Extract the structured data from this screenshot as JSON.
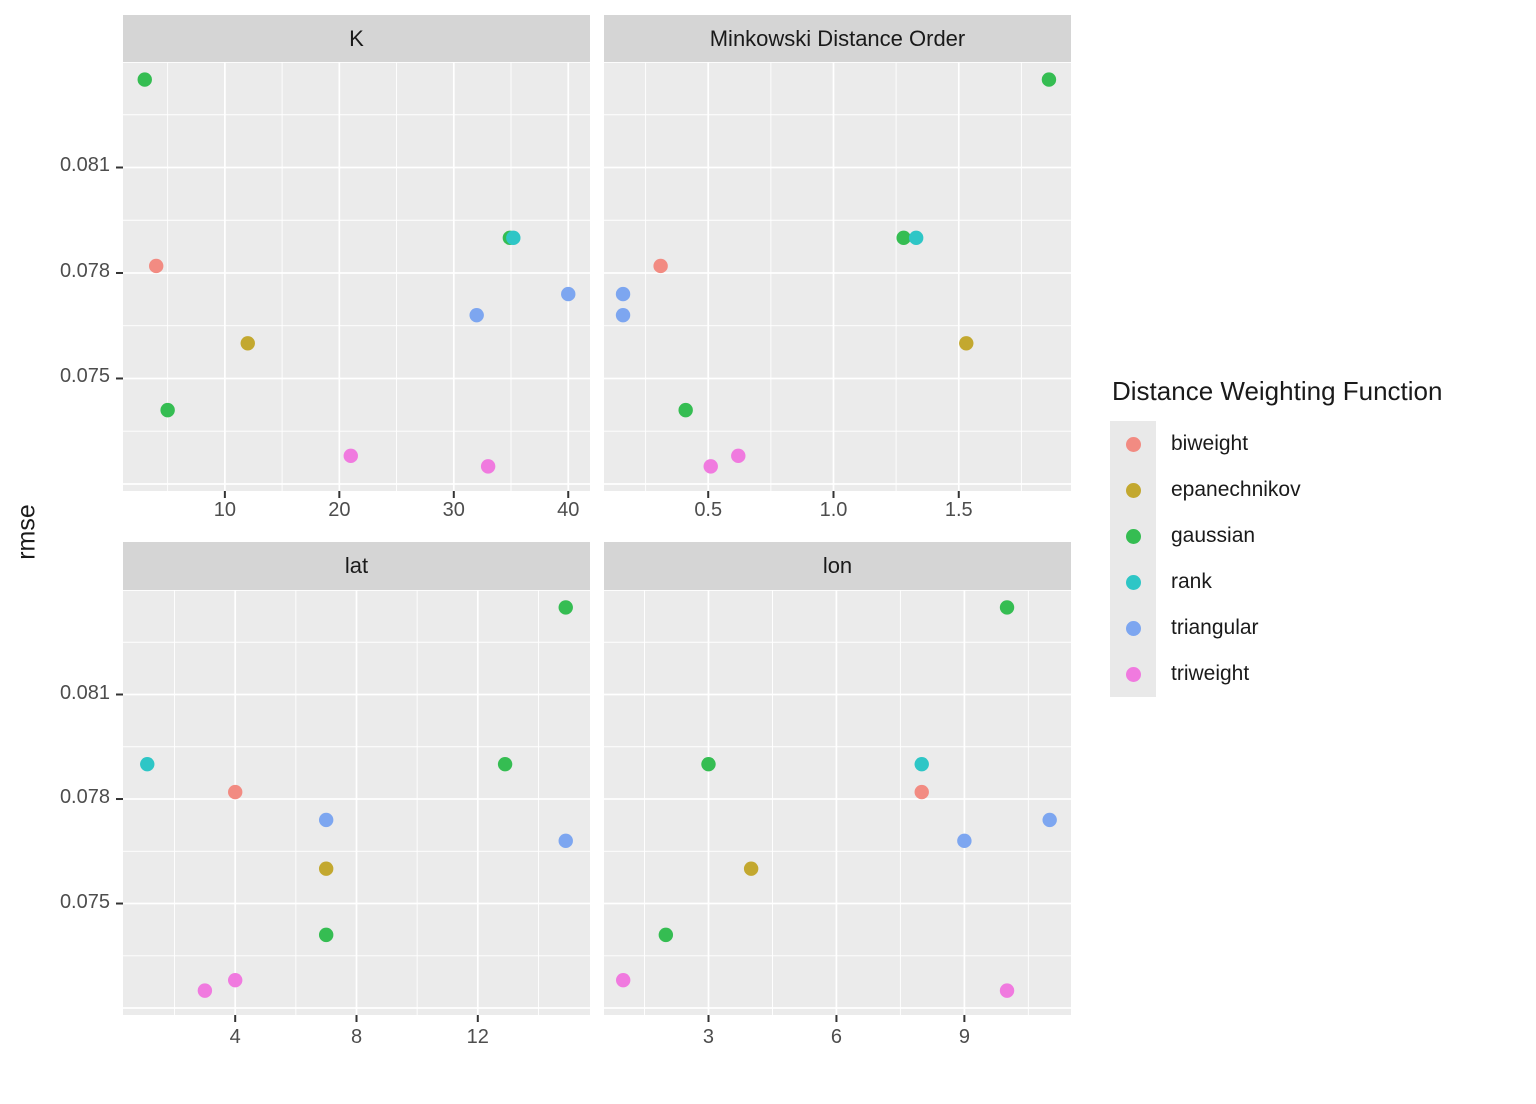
{
  "chart_data": {
    "type": "scatter",
    "ylabel": "rmse",
    "legend": {
      "title": "Distance Weighting Function",
      "position": "right"
    },
    "y_axis": {
      "domain": [
        0.0718,
        0.084
      ],
      "ticks": [
        {
          "value": 0.075,
          "label": "0.075"
        },
        {
          "value": 0.078,
          "label": "0.078"
        },
        {
          "value": 0.081,
          "label": "0.081"
        }
      ],
      "major_unlabeled": [
        0.072,
        0.084
      ],
      "minor": [
        0.0735,
        0.0765,
        0.0795,
        0.0825
      ]
    },
    "series": [
      {
        "name": "biweight",
        "color": "#F28B82"
      },
      {
        "name": "epanechnikov",
        "color": "#C3A82F"
      },
      {
        "name": "gaussian",
        "color": "#35BD52"
      },
      {
        "name": "rank",
        "color": "#2EC6C6"
      },
      {
        "name": "triangular",
        "color": "#7DA6F0"
      },
      {
        "name": "triweight",
        "color": "#F07ADF"
      }
    ],
    "facets": [
      {
        "label": "K",
        "x_domain": [
          1.1,
          41.9
        ],
        "x_ticks": [
          {
            "value": 10,
            "label": "10"
          },
          {
            "value": 20,
            "label": "20"
          },
          {
            "value": 30,
            "label": "30"
          },
          {
            "value": 40,
            "label": "40"
          }
        ],
        "x_minor": [
          5,
          15,
          25,
          35
        ],
        "points": [
          {
            "series": "biweight",
            "x": 4,
            "y": 0.0782
          },
          {
            "series": "epanechnikov",
            "x": 12,
            "y": 0.076
          },
          {
            "series": "gaussian",
            "x": 3,
            "y": 0.0835
          },
          {
            "series": "gaussian",
            "x": 34.9,
            "y": 0.079
          },
          {
            "series": "gaussian",
            "x": 5,
            "y": 0.0741
          },
          {
            "series": "rank",
            "x": 35.2,
            "y": 0.079
          },
          {
            "series": "triangular",
            "x": 40,
            "y": 0.0774
          },
          {
            "series": "triangular",
            "x": 32,
            "y": 0.0768
          },
          {
            "series": "triweight",
            "x": 21,
            "y": 0.0728
          },
          {
            "series": "triweight",
            "x": 33,
            "y": 0.0725
          }
        ]
      },
      {
        "label": "Minkowski Distance Order",
        "x_domain": [
          0.084,
          1.948
        ],
        "x_ticks": [
          {
            "value": 0.5,
            "label": "0.5"
          },
          {
            "value": 1.0,
            "label": "1.0"
          },
          {
            "value": 1.5,
            "label": "1.5"
          }
        ],
        "x_minor": [
          0.25,
          0.75,
          1.25,
          1.75
        ],
        "points": [
          {
            "series": "biweight",
            "x": 0.31,
            "y": 0.0782
          },
          {
            "series": "epanechnikov",
            "x": 1.53,
            "y": 0.076
          },
          {
            "series": "gaussian",
            "x": 1.86,
            "y": 0.0835
          },
          {
            "series": "gaussian",
            "x": 1.28,
            "y": 0.079
          },
          {
            "series": "gaussian",
            "x": 0.41,
            "y": 0.0741
          },
          {
            "series": "rank",
            "x": 1.33,
            "y": 0.079
          },
          {
            "series": "triangular",
            "x": 0.16,
            "y": 0.0774
          },
          {
            "series": "triangular",
            "x": 0.16,
            "y": 0.0768
          },
          {
            "series": "triweight",
            "x": 0.62,
            "y": 0.0728
          },
          {
            "series": "triweight",
            "x": 0.51,
            "y": 0.0725
          }
        ]
      },
      {
        "label": "lat",
        "x_domain": [
          0.3,
          15.7
        ],
        "x_ticks": [
          {
            "value": 4,
            "label": "4"
          },
          {
            "value": 8,
            "label": "8"
          },
          {
            "value": 12,
            "label": "12"
          }
        ],
        "x_minor": [
          2,
          6,
          10,
          14
        ],
        "points": [
          {
            "series": "biweight",
            "x": 4,
            "y": 0.0782
          },
          {
            "series": "epanechnikov",
            "x": 7,
            "y": 0.076
          },
          {
            "series": "gaussian",
            "x": 14.9,
            "y": 0.0835
          },
          {
            "series": "gaussian",
            "x": 12.9,
            "y": 0.079
          },
          {
            "series": "gaussian",
            "x": 7,
            "y": 0.0741
          },
          {
            "series": "rank",
            "x": 1.1,
            "y": 0.079
          },
          {
            "series": "triangular",
            "x": 7,
            "y": 0.0774
          },
          {
            "series": "triangular",
            "x": 14.9,
            "y": 0.0768
          },
          {
            "series": "triweight",
            "x": 4,
            "y": 0.0728
          },
          {
            "series": "triweight",
            "x": 3,
            "y": 0.0725
          }
        ]
      },
      {
        "label": "lon",
        "x_domain": [
          0.55,
          11.5
        ],
        "x_ticks": [
          {
            "value": 3,
            "label": "3"
          },
          {
            "value": 6,
            "label": "6"
          },
          {
            "value": 9,
            "label": "9"
          }
        ],
        "x_minor": [
          1.5,
          4.5,
          7.5,
          10.5
        ],
        "points": [
          {
            "series": "biweight",
            "x": 8,
            "y": 0.0782
          },
          {
            "series": "epanechnikov",
            "x": 4,
            "y": 0.076
          },
          {
            "series": "gaussian",
            "x": 10,
            "y": 0.0835
          },
          {
            "series": "gaussian",
            "x": 3,
            "y": 0.079
          },
          {
            "series": "gaussian",
            "x": 2,
            "y": 0.0741
          },
          {
            "series": "rank",
            "x": 8,
            "y": 0.079
          },
          {
            "series": "triangular",
            "x": 11,
            "y": 0.0774
          },
          {
            "series": "triangular",
            "x": 9,
            "y": 0.0768
          },
          {
            "series": "triweight",
            "x": 1,
            "y": 0.0728
          },
          {
            "series": "triweight",
            "x": 10,
            "y": 0.0725
          }
        ]
      }
    ],
    "colors": {
      "background": "#FFFFFF",
      "panel_bg": "#EBEBEB",
      "strip_bg": "#D5D5D5",
      "grid": "#FFFFFF",
      "tick": "#333333",
      "axis_text": "#4D4D4D",
      "text": "#1A1A1A",
      "legend_key_bg": "#E9E9E9"
    }
  }
}
